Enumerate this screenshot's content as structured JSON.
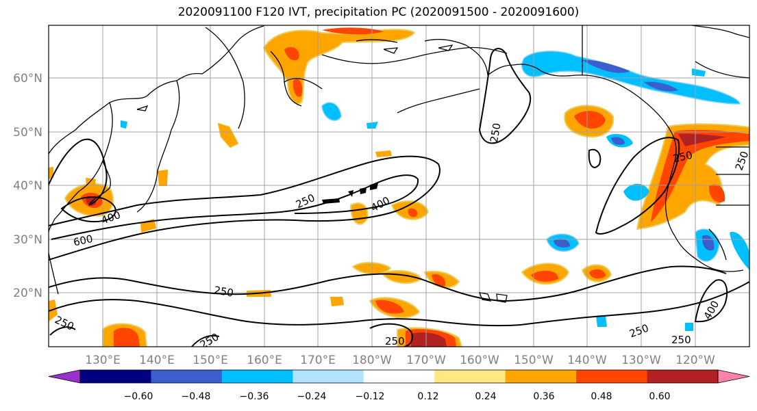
{
  "title": "2020091100 F120 IVT, precipitation PC (2020091500 - 2020091600)",
  "lat_labels": [
    "60°N",
    "50°N",
    "40°N",
    "30°N",
    "20°N"
  ],
  "lon_labels": [
    "130°E",
    "140°E",
    "150°E",
    "160°E",
    "170°E",
    "180°W",
    "170°W",
    "160°W",
    "150°W",
    "140°W",
    "130°W",
    "120°W"
  ],
  "contour_labels": [
    "250",
    "400",
    "400",
    "600",
    "250",
    "250",
    "250",
    "250",
    "250",
    "250",
    "250",
    "400",
    "250",
    "250"
  ],
  "colorbar": {
    "tick_labels": [
      "−0.60",
      "−0.48",
      "−0.36",
      "−0.24",
      "−0.12",
      "0.12",
      "0.24",
      "0.36",
      "0.48",
      "0.60"
    ],
    "colors": [
      "#9932cc",
      "#000080",
      "#3a5fcd",
      "#00bfff",
      "#b2e2ff",
      "#ffffff",
      "#ffe882",
      "#ffa500",
      "#ff4500",
      "#b22222",
      "#ff82ab"
    ]
  },
  "colors": {
    "axis_label": "#808080",
    "grid": "#a0a0a0",
    "coast": "#000000",
    "contour": "#000000"
  }
}
